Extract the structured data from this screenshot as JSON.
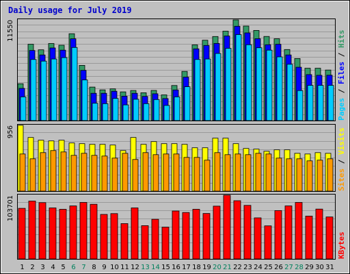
{
  "chart_data": {
    "type": "bar",
    "title": "Daily usage for July 2019",
    "x": [
      "1",
      "2",
      "3",
      "4",
      "5",
      "6",
      "7",
      "8",
      "9",
      "10",
      "11",
      "12",
      "13",
      "14",
      "15",
      "16",
      "17",
      "18",
      "19",
      "20",
      "21",
      "22",
      "23",
      "24",
      "25",
      "26",
      "27",
      "28",
      "29",
      "30",
      "31"
    ],
    "weekend_days": [
      "6",
      "7",
      "13",
      "14",
      "20",
      "21",
      "27",
      "28"
    ],
    "panels": [
      {
        "id": "hits_files_pages",
        "ymax_label": "11550",
        "ymax": 11550,
        "ylim": [
          0,
          11550
        ],
        "label_parts": [
          {
            "text": "Pages",
            "color": "#00ccff"
          },
          {
            "text": " / ",
            "color": "#000000"
          },
          {
            "text": "Files",
            "color": "#0000ff"
          },
          {
            "text": " / ",
            "color": "#000000"
          },
          {
            "text": "Hits",
            "color": "#339966"
          }
        ],
        "series": [
          {
            "name": "Hits",
            "color": "#339966",
            "values": [
              4230,
              8760,
              8120,
              8840,
              8640,
              9960,
              6330,
              3840,
              3520,
              3640,
              3290,
              3450,
              3190,
              3460,
              2950,
              4020,
              5640,
              8680,
              9220,
              9640,
              10250,
              11550,
              10840,
              10340,
              9650,
              9380,
              8150,
              7120,
              6000,
              6000,
              5800
            ]
          },
          {
            "name": "Files",
            "color": "#0000ff",
            "values": [
              3690,
              8040,
              7530,
              8330,
              8080,
              9380,
              5760,
              3130,
              3130,
              3360,
              2800,
              3130,
              2770,
              3070,
              2520,
              3510,
              4980,
              8230,
              8620,
              8850,
              9700,
              10820,
              10060,
              9390,
              8700,
              8750,
              7530,
              6120,
              5270,
              5190,
              5200
            ]
          },
          {
            "name": "Pages",
            "color": "#00ccff",
            "values": [
              2720,
              7010,
              6820,
              7060,
              7220,
              8380,
              4660,
              1990,
              1940,
              2540,
              1800,
              2440,
              1940,
              2410,
              1740,
              2720,
              3880,
              7010,
              7060,
              7700,
              8290,
              9860,
              8700,
              8350,
              8080,
              7310,
              6460,
              3440,
              4040,
              4040,
              4040
            ]
          }
        ]
      },
      {
        "id": "visits_sites",
        "ymax_label": "956",
        "ymax": 956,
        "ylim": [
          0,
          956
        ],
        "label_parts": [
          {
            "text": "Sites",
            "color": "#ff9900"
          },
          {
            "text": " / ",
            "color": "#000000"
          },
          {
            "text": "Visits",
            "color": "#ffff00"
          }
        ],
        "series": [
          {
            "name": "Visits",
            "color": "#ffff00",
            "values": [
              956,
              780,
              740,
              730,
              740,
              700,
              690,
              680,
              680,
              670,
              590,
              780,
              680,
              720,
              690,
              690,
              680,
              630,
              630,
              770,
              770,
              690,
              620,
              610,
              580,
              600,
              600,
              550,
              540,
              560,
              550
            ]
          },
          {
            "name": "Sites",
            "color": "#ff9900",
            "values": [
              540,
              470,
              560,
              590,
              570,
              520,
              550,
              520,
              510,
              480,
              550,
              460,
              560,
              530,
              540,
              540,
              490,
              490,
              450,
              560,
              530,
              540,
              530,
              550,
              540,
              480,
              470,
              470,
              440,
              450,
              470
            ]
          }
        ]
      },
      {
        "id": "kbytes",
        "ymax_label": "103701",
        "ymax": 103701,
        "ylim": [
          0,
          103701
        ],
        "label_parts": [
          {
            "text": "KBytes",
            "color": "#ff0000"
          }
        ],
        "series": [
          {
            "name": "KBytes",
            "color": "#ff0000",
            "values": [
              82440,
              94230,
              91620,
              83100,
              80880,
              86360,
              92000,
              88950,
              72500,
              73800,
              57510,
              83100,
              54200,
              64570,
              51690,
              78090,
              75590,
              80880,
              74060,
              85960,
              103701,
              94780,
              87190,
              66920,
              53820,
              78720,
              86360,
              92000,
              69650,
              81130,
              68310
            ]
          }
        ]
      }
    ]
  }
}
